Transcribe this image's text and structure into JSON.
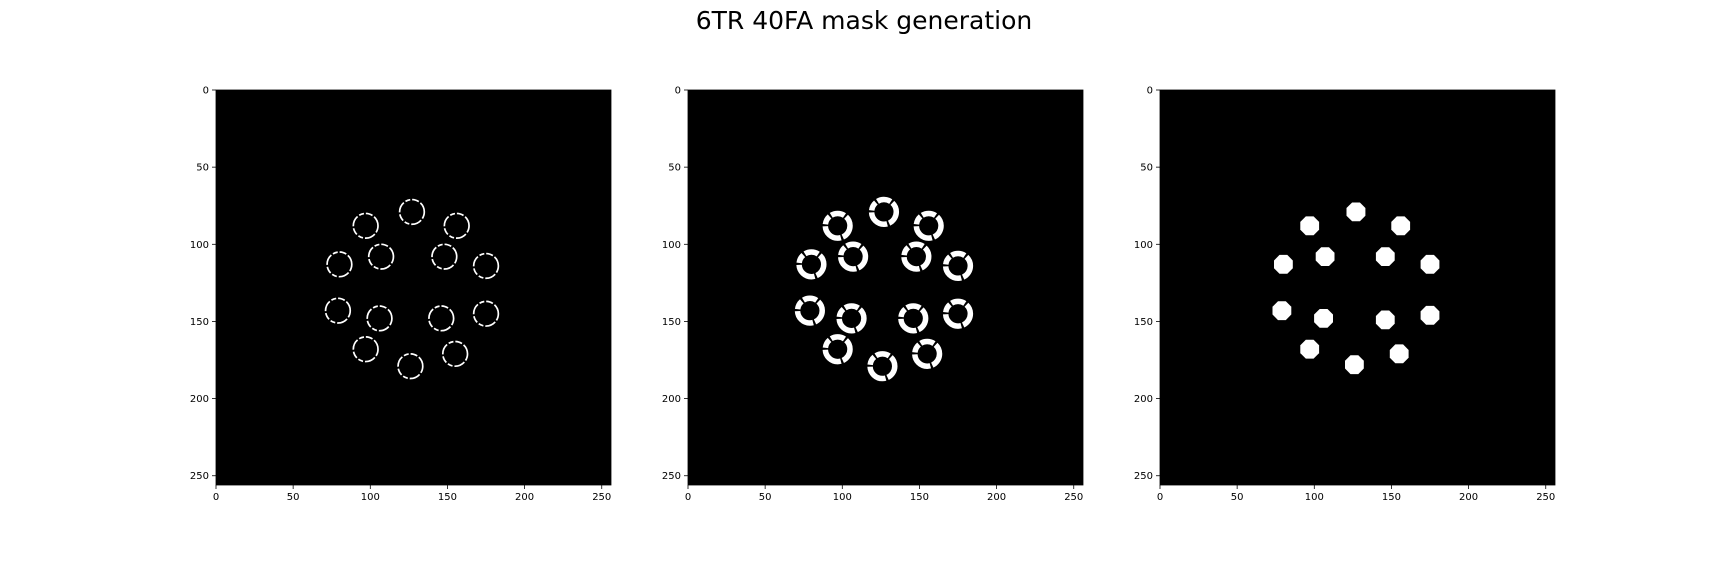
{
  "figure": {
    "title": "6TR 40FA mask generation"
  },
  "colors": {
    "background": "#000000",
    "foreground": "#ffffff",
    "axis": "#000000"
  },
  "chart_data": [
    {
      "type": "heatmap",
      "panel": "left",
      "title": "",
      "xlabel": "",
      "ylabel": "",
      "xlim": [
        0,
        256
      ],
      "ylim": [
        256,
        0
      ],
      "xticks": [
        0,
        50,
        100,
        150,
        200,
        250
      ],
      "yticks": [
        0,
        50,
        100,
        150,
        200,
        250
      ],
      "colormap": "gray",
      "style": "thin-rings",
      "circles": [
        {
          "cx": 127,
          "cy": 79,
          "r": 8
        },
        {
          "cx": 97,
          "cy": 88,
          "r": 8
        },
        {
          "cx": 156,
          "cy": 88,
          "r": 8
        },
        {
          "cx": 80,
          "cy": 113,
          "r": 8
        },
        {
          "cx": 107,
          "cy": 108,
          "r": 8
        },
        {
          "cx": 148,
          "cy": 108,
          "r": 8
        },
        {
          "cx": 175,
          "cy": 114,
          "r": 8
        },
        {
          "cx": 79,
          "cy": 143,
          "r": 8
        },
        {
          "cx": 106,
          "cy": 148,
          "r": 8
        },
        {
          "cx": 146,
          "cy": 148,
          "r": 8
        },
        {
          "cx": 175,
          "cy": 145,
          "r": 8
        },
        {
          "cx": 97,
          "cy": 168,
          "r": 8
        },
        {
          "cx": 126,
          "cy": 179,
          "r": 8
        },
        {
          "cx": 155,
          "cy": 171,
          "r": 8
        }
      ]
    },
    {
      "type": "heatmap",
      "panel": "middle",
      "title": "",
      "xlabel": "",
      "ylabel": "",
      "xlim": [
        0,
        256
      ],
      "ylim": [
        256,
        0
      ],
      "xticks": [
        0,
        50,
        100,
        150,
        200,
        250
      ],
      "yticks": [
        0,
        50,
        100,
        150,
        200,
        250
      ],
      "colormap": "gray",
      "style": "thick-rings",
      "circles": [
        {
          "cx": 127,
          "cy": 79,
          "r": 8
        },
        {
          "cx": 97,
          "cy": 88,
          "r": 8
        },
        {
          "cx": 156,
          "cy": 88,
          "r": 8
        },
        {
          "cx": 80,
          "cy": 113,
          "r": 8
        },
        {
          "cx": 107,
          "cy": 108,
          "r": 8
        },
        {
          "cx": 148,
          "cy": 108,
          "r": 8
        },
        {
          "cx": 175,
          "cy": 114,
          "r": 8
        },
        {
          "cx": 79,
          "cy": 143,
          "r": 8
        },
        {
          "cx": 106,
          "cy": 148,
          "r": 8
        },
        {
          "cx": 146,
          "cy": 148,
          "r": 8
        },
        {
          "cx": 175,
          "cy": 145,
          "r": 8
        },
        {
          "cx": 97,
          "cy": 168,
          "r": 8
        },
        {
          "cx": 126,
          "cy": 179,
          "r": 8
        },
        {
          "cx": 155,
          "cy": 171,
          "r": 8
        }
      ]
    },
    {
      "type": "heatmap",
      "panel": "right",
      "title": "",
      "xlabel": "",
      "ylabel": "",
      "xlim": [
        0,
        256
      ],
      "ylim": [
        256,
        0
      ],
      "xticks": [
        0,
        50,
        100,
        150,
        200,
        250
      ],
      "yticks": [
        0,
        50,
        100,
        150,
        200,
        250
      ],
      "colormap": "gray",
      "style": "filled-blobs",
      "circles": [
        {
          "cx": 127,
          "cy": 79,
          "r": 6
        },
        {
          "cx": 97,
          "cy": 88,
          "r": 6
        },
        {
          "cx": 156,
          "cy": 88,
          "r": 6
        },
        {
          "cx": 80,
          "cy": 113,
          "r": 6
        },
        {
          "cx": 107,
          "cy": 108,
          "r": 6
        },
        {
          "cx": 146,
          "cy": 108,
          "r": 6
        },
        {
          "cx": 175,
          "cy": 113,
          "r": 6
        },
        {
          "cx": 79,
          "cy": 143,
          "r": 6
        },
        {
          "cx": 106,
          "cy": 148,
          "r": 6
        },
        {
          "cx": 146,
          "cy": 149,
          "r": 6
        },
        {
          "cx": 175,
          "cy": 146,
          "r": 6
        },
        {
          "cx": 97,
          "cy": 168,
          "r": 6
        },
        {
          "cx": 126,
          "cy": 178,
          "r": 6
        },
        {
          "cx": 155,
          "cy": 171,
          "r": 6
        }
      ]
    }
  ]
}
